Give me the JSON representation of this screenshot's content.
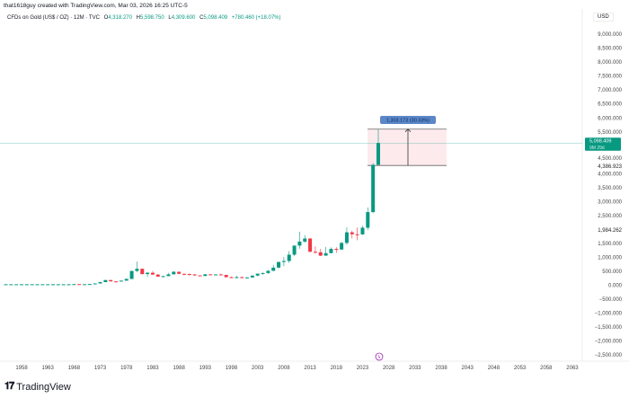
{
  "attribution": "that1618guy created with TradingView.com, Mar 03, 2026 16:25 UTC-5",
  "legend": {
    "symbol": "CFDs on Gold (US$ / OZ) · 12M · TVC",
    "open_label": "O",
    "open": "4,318.270",
    "high_label": "H",
    "high": "5,598.750",
    "low_label": "L",
    "low": "4,309.600",
    "close_label": "C",
    "close": "5,098.409",
    "change": "+780.460 (+18.07%)"
  },
  "currency": "USD",
  "y_axis_labels": [
    "9,000.000",
    "8,500.000",
    "8,000.000",
    "7,500.000",
    "7,000.000",
    "6,500.000",
    "6,000.000",
    "5,500.000",
    "4,500.000",
    "4,000.000",
    "3,500.000",
    "3,000.000",
    "2,500.000",
    "1,500.000",
    "1,000.000",
    "500.000",
    "0.000",
    "−500.000",
    "−1,000.000",
    "−1,500.000",
    "−2,000.000",
    "−2,500.000"
  ],
  "price_badge": {
    "price": "5,098.409",
    "countdown": "9M 29d"
  },
  "marker_labels": {
    "level_a": "4,386.923",
    "level_b": "1,984.262"
  },
  "measure": {
    "label": "1,303.173 (30.33%)"
  },
  "x_axis_labels": [
    "1958",
    "1963",
    "1968",
    "1973",
    "1978",
    "1983",
    "1988",
    "1993",
    "1998",
    "2003",
    "2008",
    "2013",
    "2018",
    "2023",
    "2028",
    "2033",
    "2038",
    "2043",
    "2048",
    "2053",
    "2058",
    "2063"
  ],
  "colors": {
    "up": "#089981",
    "down": "#f23645",
    "measure_fill": "#fde8ea",
    "badge": "#5b87c9"
  },
  "brand": "TradingView",
  "chart_data": {
    "type": "candlestick",
    "title": "CFDs on Gold (US$ / OZ) · 12M",
    "ylim": [
      -2500,
      9000
    ],
    "candles": [
      [
        1955,
        35,
        35,
        35,
        35
      ],
      [
        1956,
        35,
        35,
        35,
        35
      ],
      [
        1957,
        35,
        35,
        35,
        35
      ],
      [
        1958,
        35,
        35,
        35,
        35
      ],
      [
        1959,
        35,
        35,
        35,
        35
      ],
      [
        1960,
        35,
        36,
        35,
        35
      ],
      [
        1961,
        35,
        35,
        35,
        35
      ],
      [
        1962,
        35,
        35,
        35,
        35
      ],
      [
        1963,
        35,
        35,
        35,
        35
      ],
      [
        1964,
        35,
        35,
        35,
        35
      ],
      [
        1965,
        35,
        35,
        35,
        35
      ],
      [
        1966,
        35,
        35,
        35,
        35
      ],
      [
        1967,
        35,
        35,
        35,
        35
      ],
      [
        1968,
        35,
        43,
        35,
        41
      ],
      [
        1969,
        41,
        43,
        35,
        35
      ],
      [
        1970,
        35,
        39,
        35,
        37
      ],
      [
        1971,
        37,
        44,
        37,
        43
      ],
      [
        1972,
        43,
        70,
        43,
        64
      ],
      [
        1973,
        64,
        127,
        64,
        112
      ],
      [
        1974,
        112,
        195,
        112,
        187
      ],
      [
        1975,
        187,
        186,
        128,
        140
      ],
      [
        1976,
        140,
        141,
        103,
        134
      ],
      [
        1977,
        134,
        168,
        130,
        165
      ],
      [
        1978,
        165,
        245,
        165,
        226
      ],
      [
        1979,
        226,
        524,
        216,
        512
      ],
      [
        1980,
        512,
        850,
        474,
        590
      ],
      [
        1981,
        590,
        599,
        391,
        400
      ],
      [
        1982,
        400,
        481,
        297,
        448
      ],
      [
        1983,
        448,
        510,
        375,
        382
      ],
      [
        1984,
        382,
        405,
        303,
        309
      ],
      [
        1985,
        309,
        340,
        285,
        327
      ],
      [
        1986,
        327,
        442,
        326,
        391
      ],
      [
        1987,
        391,
        502,
        390,
        484
      ],
      [
        1988,
        484,
        485,
        395,
        410
      ],
      [
        1989,
        410,
        417,
        356,
        401
      ],
      [
        1990,
        401,
        424,
        345,
        386
      ],
      [
        1991,
        386,
        403,
        344,
        353
      ],
      [
        1992,
        353,
        360,
        330,
        333
      ],
      [
        1993,
        333,
        408,
        326,
        391
      ],
      [
        1994,
        391,
        397,
        370,
        383
      ],
      [
        1995,
        383,
        396,
        372,
        387
      ],
      [
        1996,
        387,
        415,
        367,
        369
      ],
      [
        1997,
        369,
        368,
        283,
        290
      ],
      [
        1998,
        290,
        313,
        273,
        288
      ],
      [
        1999,
        288,
        338,
        252,
        290
      ],
      [
        2000,
        290,
        316,
        263,
        273
      ],
      [
        2001,
        273,
        293,
        255,
        279
      ],
      [
        2002,
        279,
        349,
        277,
        347
      ],
      [
        2003,
        347,
        417,
        319,
        416
      ],
      [
        2004,
        416,
        456,
        373,
        438
      ],
      [
        2005,
        438,
        538,
        411,
        517
      ],
      [
        2006,
        517,
        730,
        512,
        632
      ],
      [
        2007,
        632,
        845,
        603,
        834
      ],
      [
        2008,
        834,
        1011,
        681,
        870
      ],
      [
        2009,
        870,
        1226,
        802,
        1096
      ],
      [
        2010,
        1096,
        1431,
        1044,
        1421
      ],
      [
        2011,
        1421,
        1921,
        1308,
        1566
      ],
      [
        2012,
        1566,
        1796,
        1522,
        1675
      ],
      [
        2013,
        1675,
        1695,
        1180,
        1202
      ],
      [
        2014,
        1202,
        1392,
        1132,
        1184
      ],
      [
        2015,
        1184,
        1308,
        1046,
        1061
      ],
      [
        2016,
        1061,
        1375,
        1061,
        1152
      ],
      [
        2017,
        1152,
        1357,
        1146,
        1303
      ],
      [
        2018,
        1303,
        1366,
        1160,
        1282
      ],
      [
        2019,
        1282,
        1557,
        1266,
        1517
      ],
      [
        2020,
        1517,
        2075,
        1451,
        1898
      ],
      [
        2021,
        1898,
        1959,
        1677,
        1829
      ],
      [
        2022,
        1829,
        2070,
        1615,
        1824
      ],
      [
        2023,
        1824,
        2135,
        1805,
        2063
      ],
      [
        2024,
        2063,
        2790,
        1984,
        2624
      ],
      [
        2025,
        2624,
        4381,
        2582,
        4318
      ],
      [
        2026,
        4318.27,
        5598.75,
        4309.6,
        5098.409
      ]
    ],
    "candle_fields": [
      "year",
      "open",
      "high",
      "low",
      "close"
    ],
    "measure_range": [
      4295.577,
      5598.75
    ]
  }
}
